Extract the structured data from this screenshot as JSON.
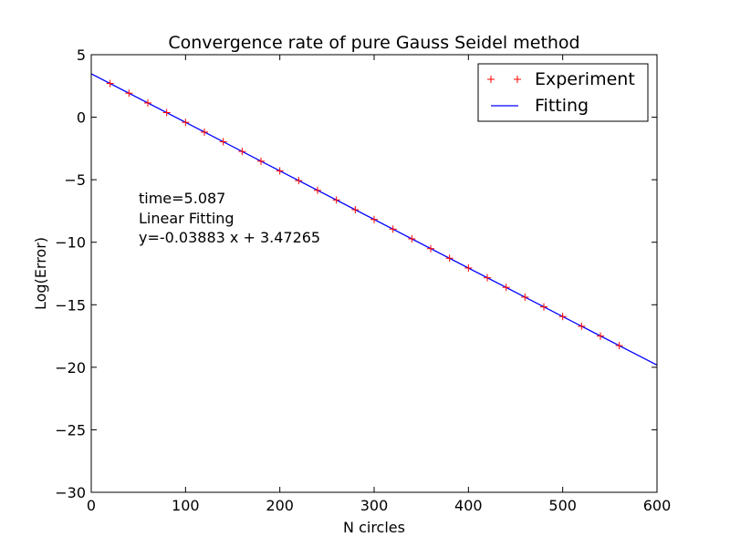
{
  "chart_data": {
    "type": "line",
    "title": "Convergence rate of pure Gauss Seidel method",
    "xlabel": "N circles",
    "ylabel": "Log(Error)",
    "xlim": [
      0,
      600
    ],
    "ylim": [
      -30,
      5
    ],
    "xticks": [
      0,
      100,
      200,
      300,
      400,
      500,
      600
    ],
    "xtick_labels": [
      "0",
      "100",
      "200",
      "300",
      "400",
      "500",
      "600"
    ],
    "yticks": [
      5,
      0,
      -5,
      -10,
      -15,
      -20,
      -25,
      -30
    ],
    "ytick_labels": [
      "5",
      "0",
      "−5",
      "−10",
      "−15",
      "−20",
      "−25",
      "−30"
    ],
    "grid": false,
    "legend_position": "top-right",
    "series": [
      {
        "name": "Experiment",
        "kind": "markers",
        "marker": "+",
        "color": "#ff0000",
        "x": [
          20,
          40,
          60,
          80,
          100,
          120,
          140,
          160,
          180,
          200,
          220,
          240,
          260,
          280,
          300,
          320,
          340,
          360,
          380,
          400,
          420,
          440,
          460,
          480,
          500,
          520,
          540,
          560
        ],
        "y": [
          2.7,
          1.92,
          1.14,
          0.37,
          -0.41,
          -1.19,
          -1.96,
          -2.74,
          -3.52,
          -4.29,
          -5.07,
          -5.85,
          -6.62,
          -7.4,
          -8.18,
          -8.95,
          -9.73,
          -10.51,
          -11.28,
          -12.06,
          -12.84,
          -13.61,
          -14.39,
          -15.17,
          -15.94,
          -16.72,
          -17.5,
          -18.27
        ]
      },
      {
        "name": "Fitting",
        "kind": "line",
        "color": "#0000ff",
        "x": [
          0,
          600
        ],
        "y": [
          3.47265,
          -19.82535
        ]
      }
    ],
    "annotations": [
      "time=5.087",
      "Linear Fitting",
      "y=-0.03883 x + 3.47265"
    ]
  }
}
